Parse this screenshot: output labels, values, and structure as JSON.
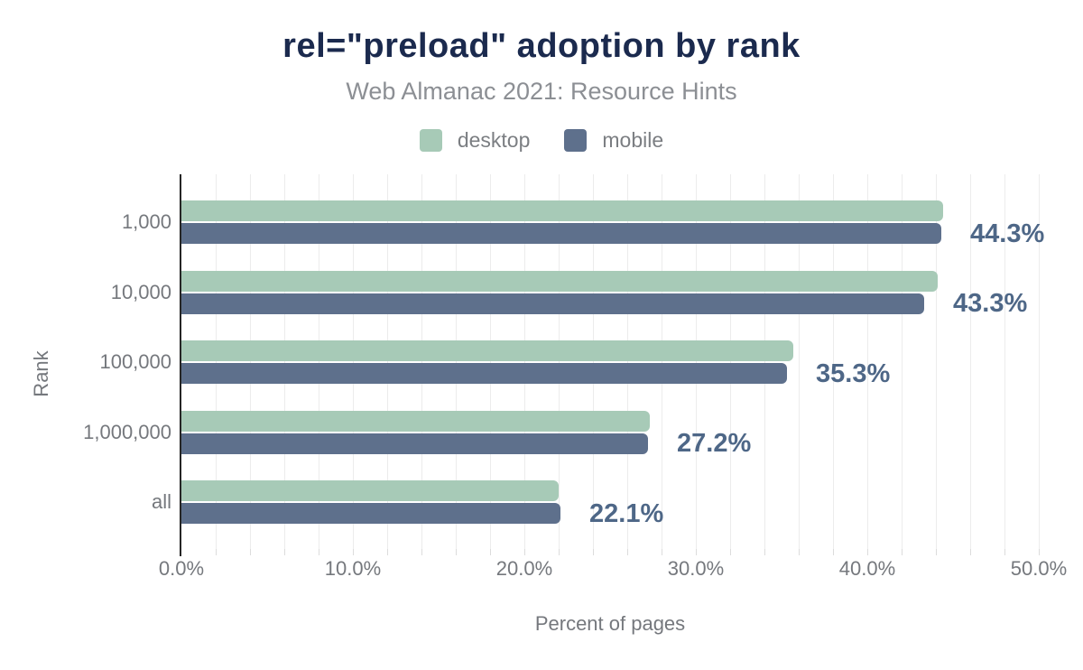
{
  "title": "rel=\"preload\" adoption by rank",
  "subtitle": "Web Almanac 2021: Resource Hints",
  "axis_titles": {
    "x": "Percent of pages",
    "y": "Rank"
  },
  "legend": {
    "items": [
      {
        "label": "desktop",
        "color": "#a7cab7"
      },
      {
        "label": "mobile",
        "color": "#5e708c"
      }
    ]
  },
  "colors": {
    "title": "#1b2a4e",
    "subtitle": "#8c8f94",
    "axis_text": "#75787d",
    "legend_text": "#7b7e82",
    "value_label": "#4e6787",
    "axis_line": "#262626",
    "gridline": "#ececec",
    "tick_stub": "#dcdcdc",
    "desktop_bar": "#a7cab7",
    "mobile_bar": "#5e708c",
    "background": "#ffffff"
  },
  "chart_data": {
    "type": "bar",
    "orientation": "horizontal",
    "title": "rel=\"preload\" adoption by rank",
    "subtitle": "Web Almanac 2021: Resource Hints",
    "xlabel": "Percent of pages",
    "ylabel": "Rank",
    "xlim": [
      0,
      50
    ],
    "x_tick_values": [
      0,
      10,
      20,
      30,
      40,
      50
    ],
    "x_tick_labels": [
      "0.0%",
      "10.0%",
      "20.0%",
      "30.0%",
      "40.0%",
      "50.0%"
    ],
    "minor_gridline_step_percent": 2,
    "grid": true,
    "legend_position": "top",
    "categories": [
      "1,000",
      "10,000",
      "100,000",
      "1,000,000",
      "all"
    ],
    "series": [
      {
        "name": "desktop",
        "color": "#a7cab7",
        "values": [
          44.4,
          44.1,
          35.7,
          27.3,
          22.0
        ]
      },
      {
        "name": "mobile",
        "color": "#5e708c",
        "values": [
          44.3,
          43.3,
          35.3,
          27.2,
          22.1
        ]
      }
    ],
    "value_labels": {
      "labeled_series": "mobile",
      "texts": [
        "44.3%",
        "43.3%",
        "35.3%",
        "27.2%",
        "22.1%"
      ]
    }
  }
}
